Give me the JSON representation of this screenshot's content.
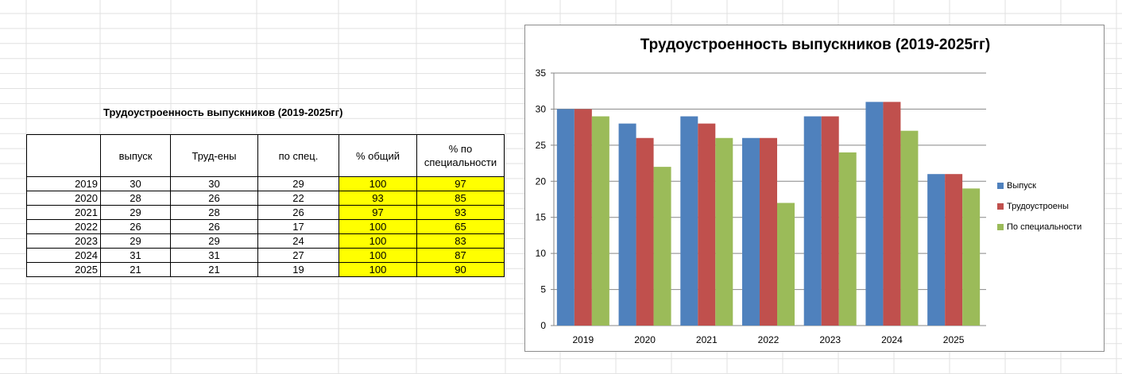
{
  "table": {
    "title": "Трудоустроенность выпускников (2019-2025гг)",
    "headers": [
      "",
      "выпуск",
      "Труд-ены",
      "по спец.",
      "% общий",
      "% по специальности"
    ],
    "rows": [
      [
        "2019",
        "30",
        "30",
        "29",
        "100",
        "97"
      ],
      [
        "2020",
        "28",
        "26",
        "22",
        "93",
        "85"
      ],
      [
        "2021",
        "29",
        "28",
        "26",
        "97",
        "93"
      ],
      [
        "2022",
        "26",
        "26",
        "17",
        "100",
        "65"
      ],
      [
        "2023",
        "29",
        "29",
        "24",
        "100",
        "83"
      ],
      [
        "2024",
        "31",
        "31",
        "27",
        "100",
        "87"
      ],
      [
        "2025",
        "21",
        "21",
        "19",
        "100",
        "90"
      ]
    ],
    "highlight_color": "#ffff00"
  },
  "chart_data": {
    "type": "bar",
    "title": "Трудоустроенность выпускников (2019-2025гг)",
    "categories": [
      "2019",
      "2020",
      "2021",
      "2022",
      "2023",
      "2024",
      "2025"
    ],
    "series": [
      {
        "name": "Выпуск",
        "values": [
          30,
          28,
          29,
          26,
          29,
          31,
          21
        ],
        "color": "#4f81bd"
      },
      {
        "name": "Трудоустроены",
        "values": [
          30,
          26,
          28,
          26,
          29,
          31,
          21
        ],
        "color": "#c0504d"
      },
      {
        "name": "По специальности",
        "values": [
          29,
          22,
          26,
          17,
          24,
          27,
          19
        ],
        "color": "#9bbb59"
      }
    ],
    "ylim": [
      0,
      35
    ],
    "yticks": [
      0,
      5,
      10,
      15,
      20,
      25,
      30,
      35
    ],
    "grid": true,
    "legend": "right"
  }
}
